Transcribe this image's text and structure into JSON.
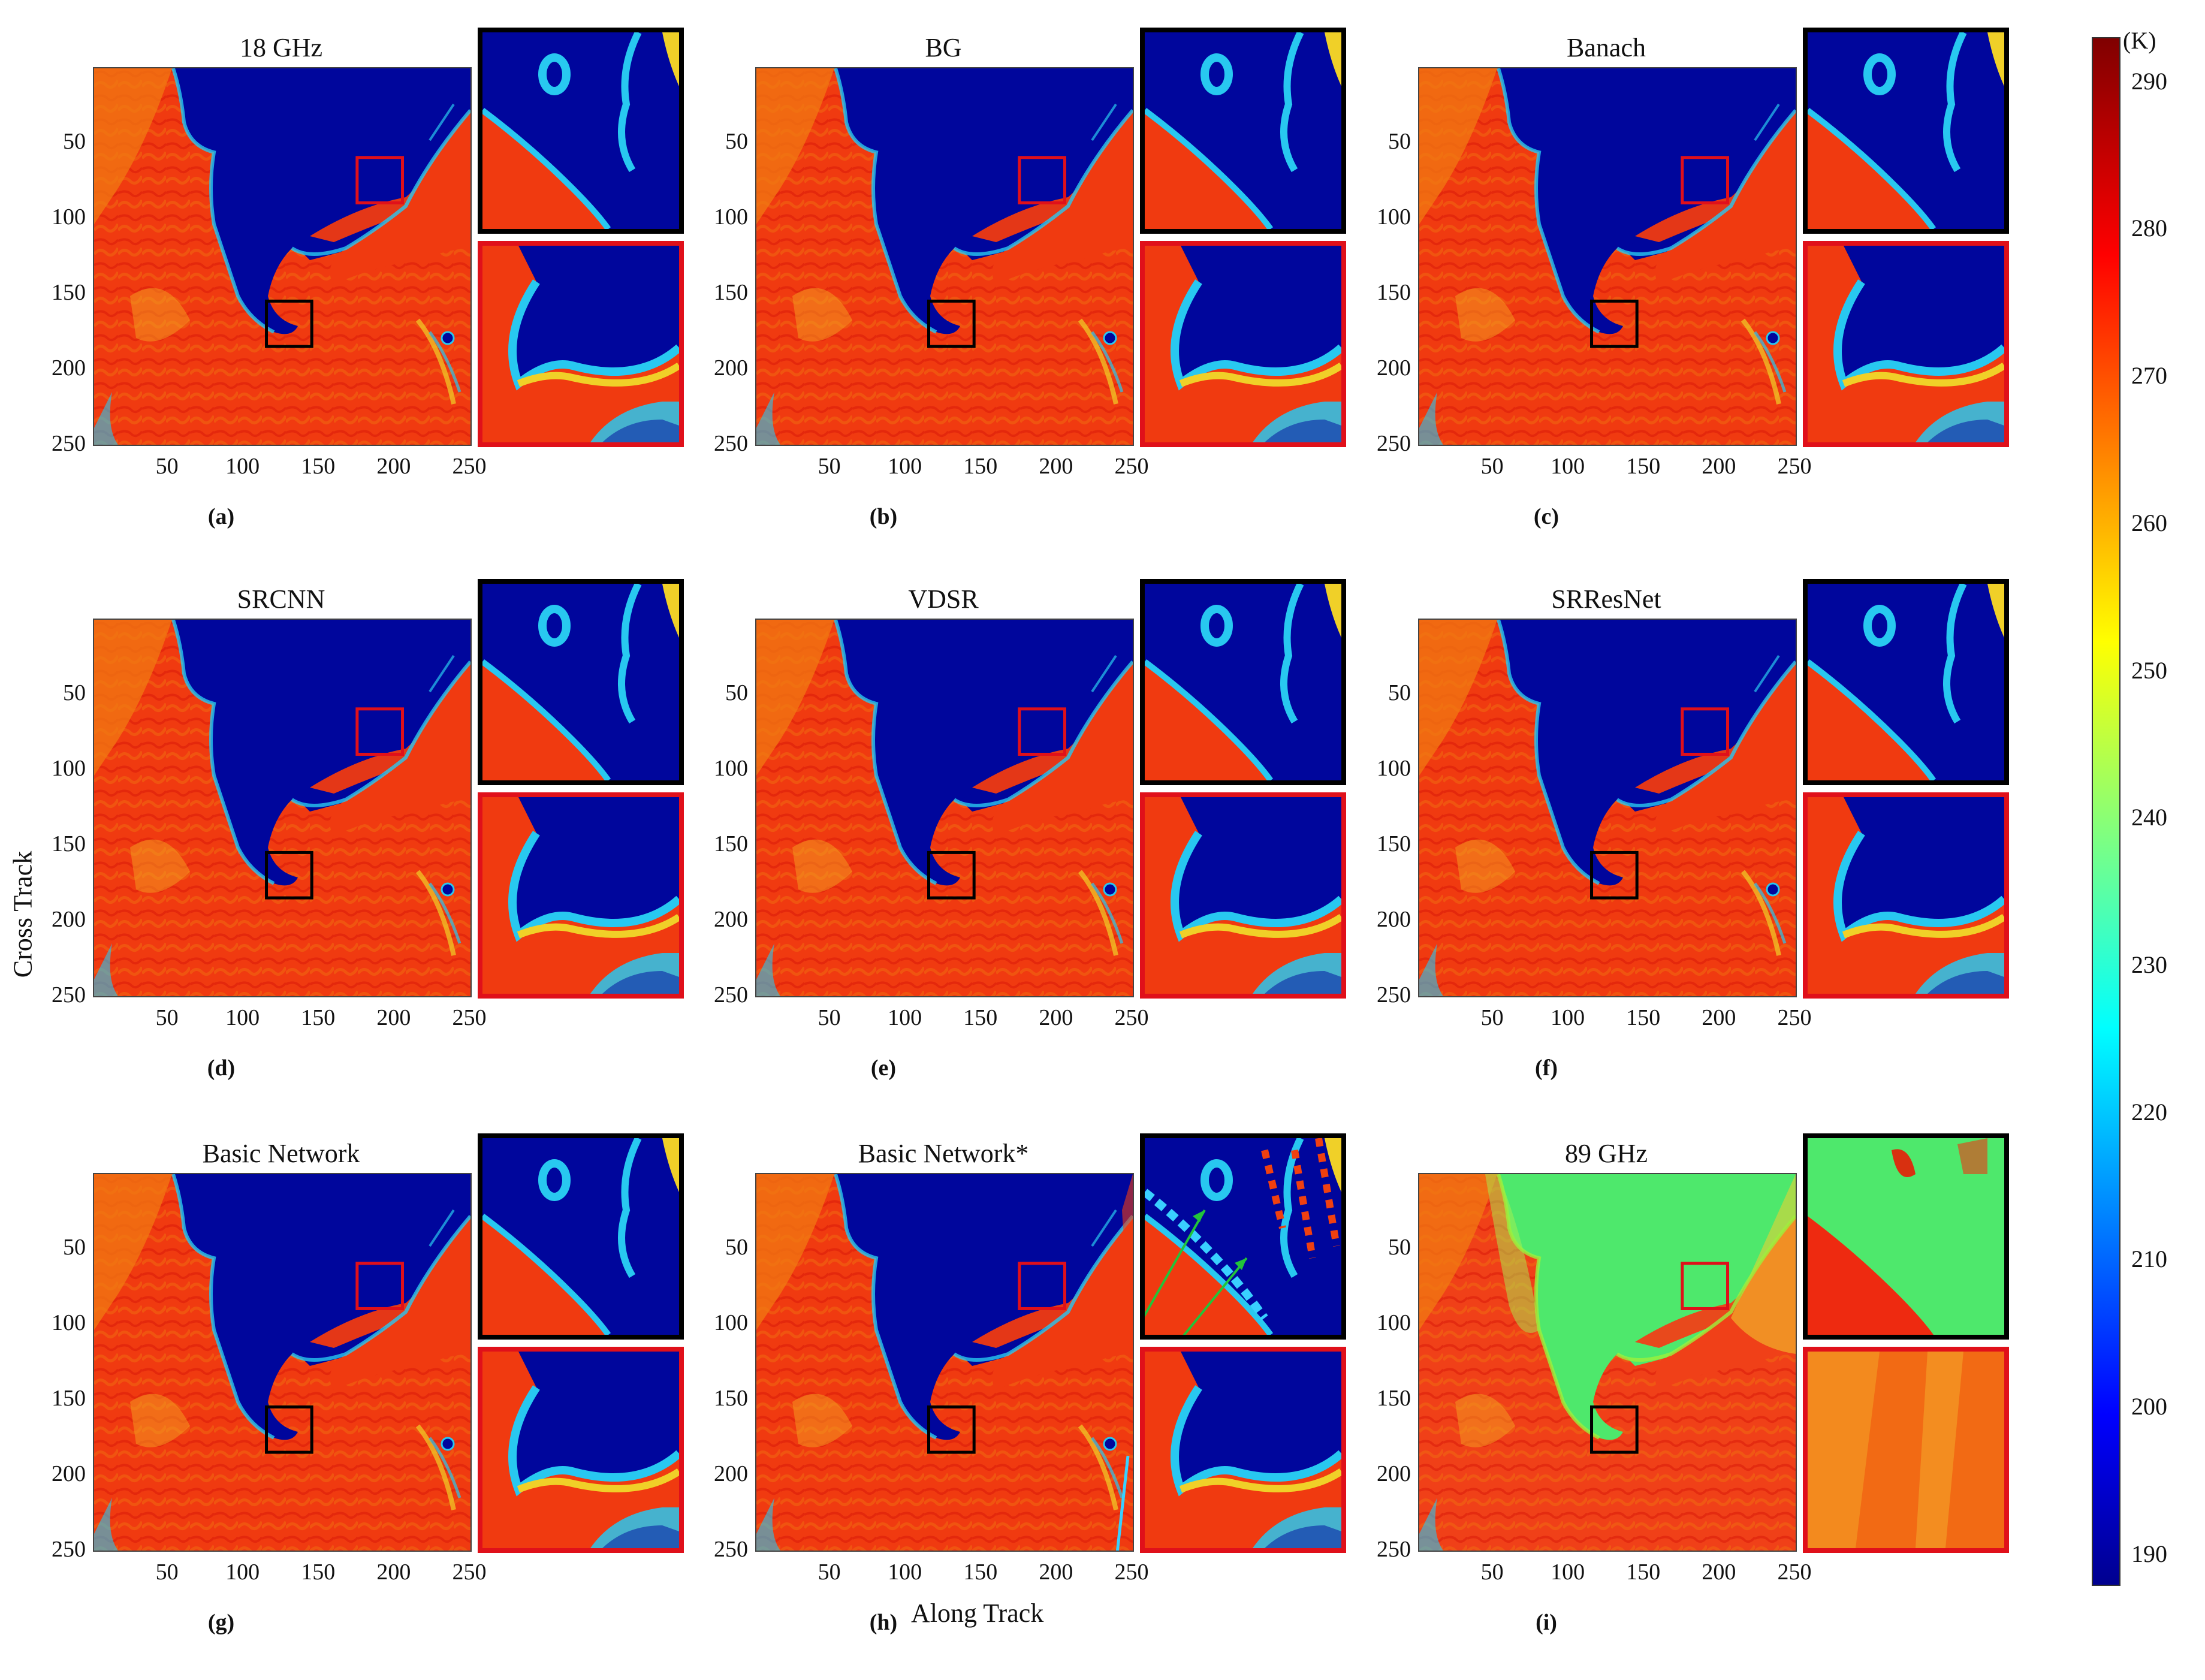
{
  "chart_data": {
    "type": "heatmap",
    "panels": [
      {
        "id": "a",
        "title": "18 GHz",
        "caption": "(a)",
        "style": "ref"
      },
      {
        "id": "b",
        "title": "BG",
        "caption": "(b)",
        "style": "ref"
      },
      {
        "id": "c",
        "title": "Banach",
        "caption": "(c)",
        "style": "ref"
      },
      {
        "id": "d",
        "title": "SRCNN",
        "caption": "(d)",
        "style": "ref"
      },
      {
        "id": "e",
        "title": "VDSR",
        "caption": "(e)",
        "style": "ref"
      },
      {
        "id": "f",
        "title": "SRResNet",
        "caption": "(f)",
        "style": "ref"
      },
      {
        "id": "g",
        "title": "Basic Network",
        "caption": "(g)",
        "style": "ref"
      },
      {
        "id": "h",
        "title": "Basic Network*",
        "caption": "(h)",
        "style": "arrow"
      },
      {
        "id": "i",
        "title": "89 GHz",
        "caption": "(i)",
        "style": "hf"
      }
    ],
    "xlabel": "Along Track",
    "ylabel": "Cross Track",
    "xticks": [
      50,
      100,
      150,
      200,
      250
    ],
    "yticks": [
      50,
      100,
      150,
      200,
      250
    ],
    "xlim": [
      1,
      250
    ],
    "ylim": [
      1,
      250
    ],
    "inset_boxes": [
      {
        "color": "red",
        "x_range": [
          175,
          205
        ],
        "y_range": [
          60,
          90
        ]
      },
      {
        "color": "black",
        "x_range": [
          115,
          145
        ],
        "y_range": [
          155,
          185
        ]
      }
    ],
    "colorbar": {
      "unit": "(K)",
      "ticks": [
        190,
        200,
        210,
        220,
        230,
        240,
        250,
        260,
        270,
        280,
        290
      ],
      "range": [
        188,
        293
      ],
      "colormap": "jet"
    }
  },
  "colors": {
    "sea": "#00069c",
    "land": "#f03a10",
    "land_dark": "#e0200a",
    "coast_cyan": "#28c8f0",
    "coast_yellow": "#f0d028",
    "green_89": "#4ee86c",
    "box_red": "#e0101a",
    "box_black": "#000000",
    "arrow_green": "#22c43a"
  }
}
